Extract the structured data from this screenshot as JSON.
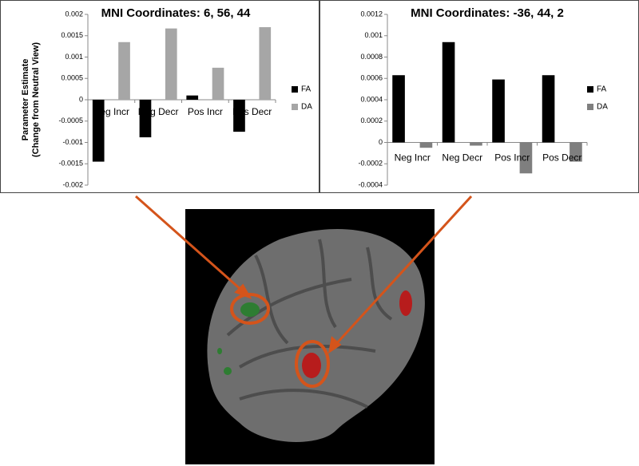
{
  "chart_data": [
    {
      "type": "bar",
      "title": "MNI Coordinates: 6, 56, 44",
      "y_label": [
        "Parameter Estimate",
        "(Change from Neutral View)"
      ],
      "categories": [
        "Neg Incr",
        "Neg Decr",
        "Pos Incr",
        "Pos Decr"
      ],
      "series": [
        {
          "name": "FA",
          "color": "#000000",
          "values": [
            -0.00145,
            -0.00088,
            0.0001,
            -0.00075
          ]
        },
        {
          "name": "DA",
          "color": "#a6a6a6",
          "values": [
            0.00135,
            0.00167,
            0.00075,
            0.0017
          ]
        }
      ],
      "ylim": [
        -0.002,
        0.002
      ],
      "yticks": [
        -0.002,
        -0.0015,
        -0.001,
        -0.0005,
        0,
        0.0005,
        0.001,
        0.0015,
        0.002
      ],
      "legend": "right"
    },
    {
      "type": "bar",
      "title": "MNI Coordinates: -36, 44, 2",
      "categories": [
        "Neg Incr",
        "Neg Decr",
        "Pos Incr",
        "Pos Decr"
      ],
      "series": [
        {
          "name": "FA",
          "color": "#000000",
          "values": [
            0.00063,
            0.00094,
            0.00059,
            0.00063
          ]
        },
        {
          "name": "DA",
          "color": "#7f7f7f",
          "values": [
            -5e-05,
            -3e-05,
            -0.00029,
            -0.00018
          ]
        }
      ],
      "ylim": [
        -0.0004,
        0.0012
      ],
      "yticks": [
        -0.0004,
        -0.0002,
        0,
        0.0002,
        0.0004,
        0.0006,
        0.0008,
        0.001,
        0.0012
      ],
      "legend": "right"
    }
  ]
}
